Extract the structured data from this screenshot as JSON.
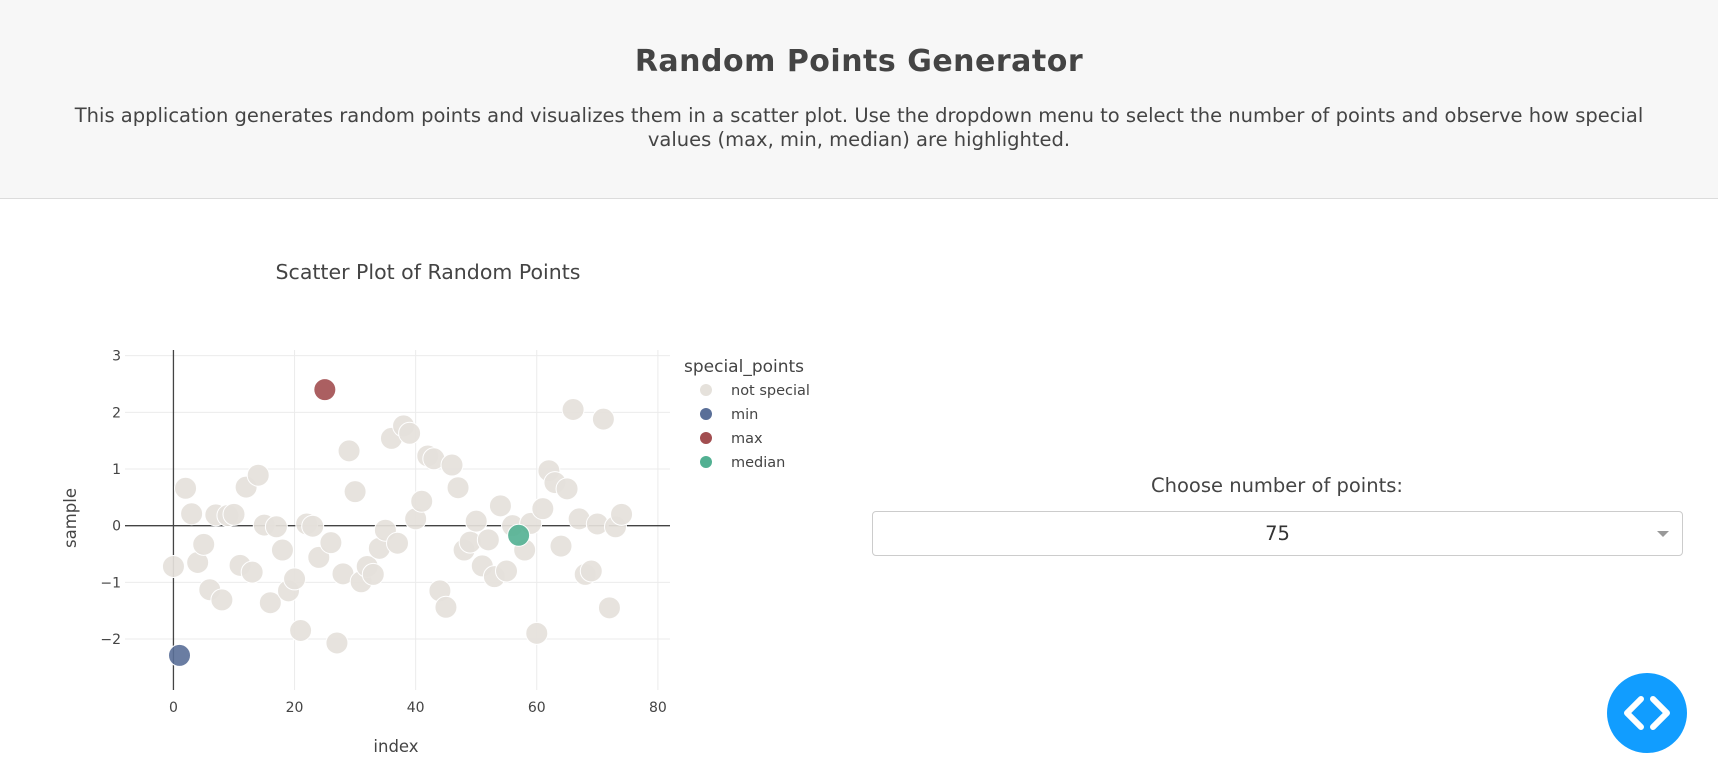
{
  "header": {
    "title": "Random Points Generator",
    "description": "This application generates random points and visualizes them in a scatter plot. Use the dropdown menu to select the number of points and observe how special values (max, min, median) are highlighted."
  },
  "control": {
    "label": "Choose number of points:",
    "selected_value": "75"
  },
  "fab": {
    "icon": "code-icon"
  },
  "colors": {
    "not_special": "#e5e1db",
    "min": "#5a6f98",
    "max": "#a24e50",
    "median": "#52b092"
  },
  "chart_data": {
    "type": "scatter",
    "title": "Scatter Plot of Random Points",
    "xlabel": "index",
    "ylabel": "sample",
    "xlim": [
      -8,
      82
    ],
    "ylim": [
      -2.9,
      3.1
    ],
    "xticks": [
      0,
      20,
      40,
      60,
      80
    ],
    "yticks": [
      -2,
      -1,
      0,
      1,
      2,
      3
    ],
    "ytick_labels": [
      "−2",
      "−1",
      "0",
      "1",
      "2",
      "3"
    ],
    "grid": true,
    "legend": {
      "title": "special_points",
      "placement": "right",
      "entries": [
        "not special",
        "min",
        "max",
        "median"
      ]
    },
    "series": [
      {
        "name": "not special",
        "x": [
          0,
          2,
          3,
          4,
          5,
          6,
          7,
          8,
          9,
          10,
          11,
          12,
          13,
          14,
          15,
          16,
          17,
          18,
          19,
          20,
          21,
          22,
          23,
          24,
          26,
          27,
          28,
          29,
          30,
          31,
          32,
          33,
          34,
          35,
          36,
          37,
          38,
          39,
          40,
          41,
          42,
          43,
          44,
          45,
          46,
          47,
          48,
          49,
          50,
          51,
          52,
          53,
          54,
          55,
          56,
          58,
          59,
          60,
          61,
          62,
          63,
          64,
          65,
          66,
          67,
          68,
          69,
          70,
          71,
          72,
          73,
          74
        ],
        "y": [
          -0.72,
          0.66,
          0.21,
          -0.65,
          -0.33,
          -1.13,
          0.19,
          -1.31,
          0.18,
          0.2,
          -0.7,
          0.68,
          -0.82,
          0.89,
          0.01,
          -1.36,
          -0.02,
          -0.43,
          -1.15,
          -0.94,
          -1.85,
          0.03,
          -0.01,
          -0.56,
          -0.3,
          -2.07,
          -0.85,
          1.32,
          0.6,
          -0.99,
          -0.72,
          -0.86,
          -0.4,
          -0.08,
          1.54,
          -0.31,
          1.76,
          1.63,
          0.12,
          0.43,
          1.23,
          1.18,
          -1.15,
          -1.44,
          1.07,
          0.67,
          -0.43,
          -0.29,
          0.08,
          -0.71,
          -0.25,
          -0.9,
          0.35,
          -0.8,
          0,
          -0.43,
          0.04,
          -1.9,
          0.3,
          0.97,
          0.76,
          -0.36,
          0.65,
          2.05,
          0.12,
          -0.86,
          -0.8,
          0.03,
          1.88,
          -1.45,
          -0.02,
          0.2
        ]
      },
      {
        "name": "min",
        "x": [
          1
        ],
        "y": [
          -2.29
        ]
      },
      {
        "name": "max",
        "x": [
          25
        ],
        "y": [
          2.4
        ]
      },
      {
        "name": "median",
        "x": [
          57
        ],
        "y": [
          -0.17
        ]
      }
    ]
  }
}
